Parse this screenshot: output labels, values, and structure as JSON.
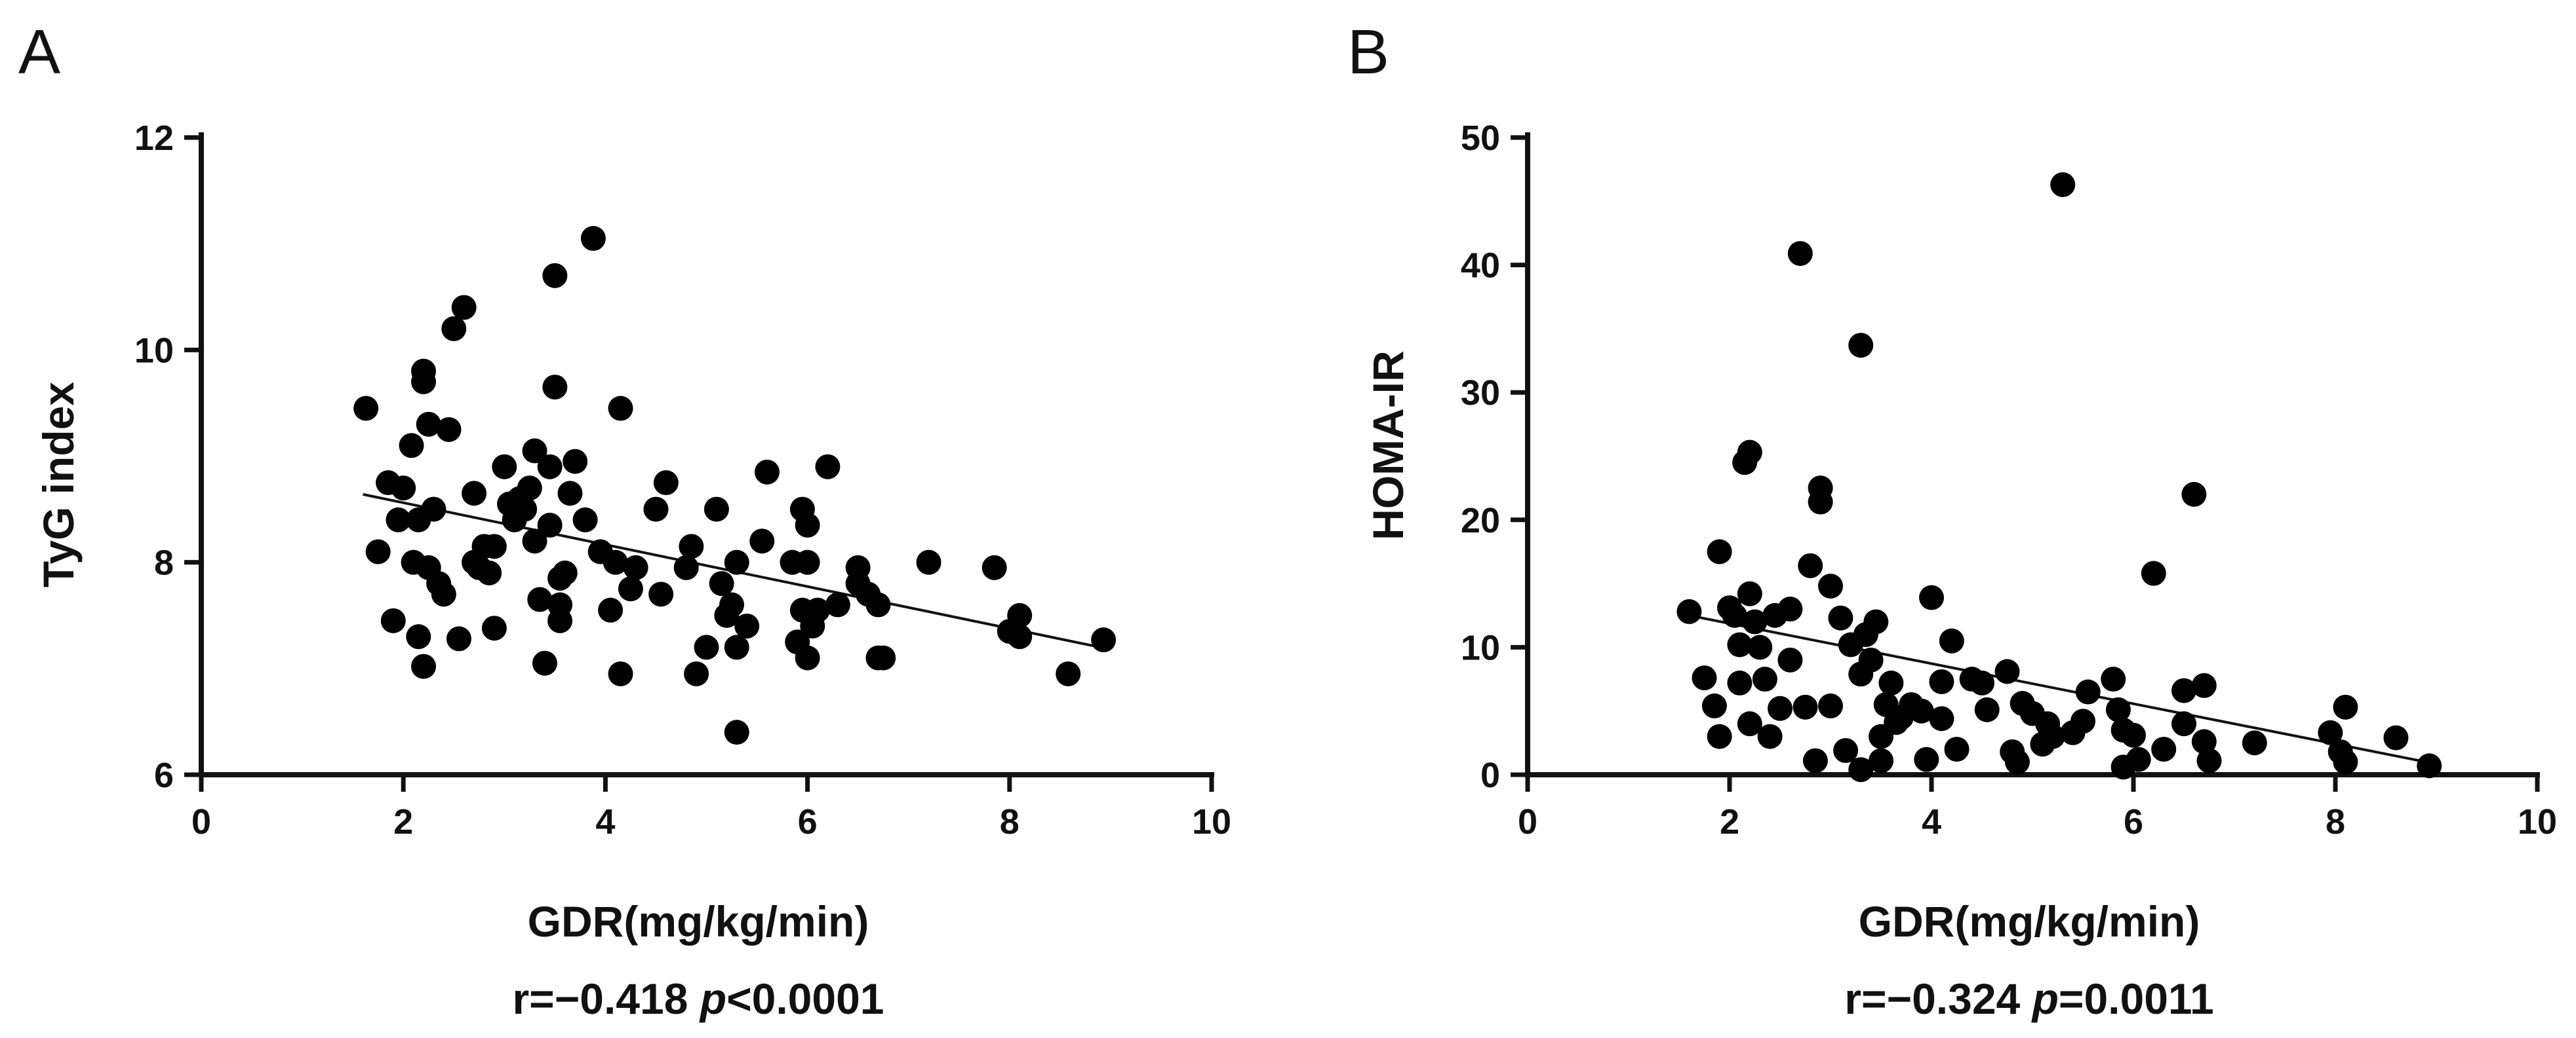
{
  "chart_data": [
    {
      "panel": "A",
      "type": "scatter",
      "xlabel": "GDR(mg/kg/min)",
      "ylabel": "TyG index",
      "xlim": [
        0,
        10
      ],
      "ylim": [
        6,
        12
      ],
      "xticks": [
        0,
        2,
        4,
        6,
        8,
        10
      ],
      "yticks": [
        6,
        8,
        10,
        12
      ],
      "stats": {
        "r_text": "r=−0.418 ",
        "p_symbol": "p",
        "p_value": "<0.0001"
      },
      "fit": {
        "x": [
          1.6,
          8.9
        ],
        "y": [
          8.64,
          7.2
        ]
      },
      "points": [
        [
          1.63,
          9.45
        ],
        [
          1.75,
          8.1
        ],
        [
          1.85,
          8.75
        ],
        [
          1.9,
          7.45
        ],
        [
          1.95,
          8.4
        ],
        [
          2.0,
          8.7
        ],
        [
          2.08,
          9.1
        ],
        [
          2.1,
          8.0
        ],
        [
          2.15,
          7.3
        ],
        [
          2.15,
          8.4
        ],
        [
          2.2,
          9.7
        ],
        [
          2.2,
          9.8
        ],
        [
          2.2,
          7.02
        ],
        [
          2.25,
          9.3
        ],
        [
          2.25,
          7.95
        ],
        [
          2.3,
          8.5
        ],
        [
          2.35,
          7.8
        ],
        [
          2.4,
          7.7
        ],
        [
          2.45,
          9.25
        ],
        [
          2.5,
          10.2
        ],
        [
          2.6,
          10.4
        ],
        [
          2.55,
          7.28
        ],
        [
          2.7,
          8.65
        ],
        [
          2.7,
          8.0
        ],
        [
          2.75,
          7.95
        ],
        [
          2.8,
          8.15
        ],
        [
          2.85,
          7.9
        ],
        [
          2.9,
          8.15
        ],
        [
          2.9,
          7.38
        ],
        [
          3.0,
          8.9
        ],
        [
          3.05,
          8.55
        ],
        [
          3.1,
          8.4
        ],
        [
          3.15,
          8.6
        ],
        [
          3.2,
          8.5
        ],
        [
          3.25,
          8.7
        ],
        [
          3.3,
          9.05
        ],
        [
          3.3,
          8.2
        ],
        [
          3.35,
          7.65
        ],
        [
          3.4,
          7.05
        ],
        [
          3.45,
          8.9
        ],
        [
          3.45,
          8.35
        ],
        [
          3.5,
          9.65
        ],
        [
          3.5,
          10.7
        ],
        [
          3.55,
          7.85
        ],
        [
          3.55,
          7.6
        ],
        [
          3.55,
          7.45
        ],
        [
          3.6,
          7.9
        ],
        [
          3.65,
          8.65
        ],
        [
          3.7,
          8.95
        ],
        [
          3.8,
          8.4
        ],
        [
          3.88,
          11.05
        ],
        [
          3.95,
          8.1
        ],
        [
          4.05,
          7.55
        ],
        [
          4.1,
          8.0
        ],
        [
          4.15,
          9.45
        ],
        [
          4.15,
          6.95
        ],
        [
          4.25,
          7.75
        ],
        [
          4.3,
          7.95
        ],
        [
          4.5,
          8.5
        ],
        [
          4.55,
          7.7
        ],
        [
          4.6,
          8.75
        ],
        [
          4.8,
          7.95
        ],
        [
          4.85,
          8.15
        ],
        [
          4.9,
          6.95
        ],
        [
          5.0,
          7.2
        ],
        [
          5.1,
          8.5
        ],
        [
          5.15,
          7.8
        ],
        [
          5.2,
          7.5
        ],
        [
          5.25,
          7.6
        ],
        [
          5.3,
          8.0
        ],
        [
          5.3,
          7.2
        ],
        [
          5.3,
          6.4
        ],
        [
          5.4,
          7.4
        ],
        [
          5.55,
          8.2
        ],
        [
          5.6,
          8.85
        ],
        [
          5.85,
          8.0
        ],
        [
          5.9,
          7.25
        ],
        [
          5.95,
          8.5
        ],
        [
          5.95,
          7.55
        ],
        [
          6.0,
          8.35
        ],
        [
          6.0,
          8.0
        ],
        [
          6.0,
          7.1
        ],
        [
          6.05,
          7.4
        ],
        [
          6.1,
          7.55
        ],
        [
          6.2,
          8.9
        ],
        [
          6.3,
          7.6
        ],
        [
          6.5,
          7.95
        ],
        [
          6.5,
          7.8
        ],
        [
          6.6,
          7.7
        ],
        [
          6.7,
          7.6
        ],
        [
          6.7,
          7.1
        ],
        [
          6.75,
          7.1
        ],
        [
          7.2,
          8.0
        ],
        [
          7.85,
          7.95
        ],
        [
          8.0,
          7.35
        ],
        [
          8.1,
          7.3
        ],
        [
          8.1,
          7.5
        ],
        [
          8.58,
          6.95
        ],
        [
          8.93,
          7.27
        ]
      ]
    },
    {
      "panel": "B",
      "type": "scatter",
      "xlabel": "GDR(mg/kg/min)",
      "ylabel": "HOMA-IR",
      "xlim": [
        0,
        10
      ],
      "ylim": [
        0,
        50
      ],
      "xticks": [
        0,
        2,
        4,
        6,
        8,
        10
      ],
      "yticks": [
        0,
        10,
        20,
        30,
        40,
        50
      ],
      "stats": {
        "r_text": "r=−0.324 ",
        "p_symbol": "p",
        "p_value": "=0.0011"
      },
      "fit": {
        "x": [
          1.6,
          8.9
        ],
        "y": [
          12.5,
          1.0
        ]
      },
      "points": [
        [
          1.6,
          12.8
        ],
        [
          1.75,
          7.6
        ],
        [
          1.85,
          5.4
        ],
        [
          1.9,
          3.0
        ],
        [
          1.9,
          17.5
        ],
        [
          2.0,
          13.1
        ],
        [
          2.05,
          12.5
        ],
        [
          2.1,
          7.2
        ],
        [
          2.1,
          10.2
        ],
        [
          2.15,
          24.5
        ],
        [
          2.2,
          25.3
        ],
        [
          2.2,
          14.2
        ],
        [
          2.2,
          4.0
        ],
        [
          2.25,
          12.0
        ],
        [
          2.3,
          10.0
        ],
        [
          2.35,
          7.5
        ],
        [
          2.4,
          3.0
        ],
        [
          2.45,
          12.5
        ],
        [
          2.5,
          5.2
        ],
        [
          2.6,
          13.0
        ],
        [
          2.6,
          9.0
        ],
        [
          2.7,
          40.9
        ],
        [
          2.75,
          5.3
        ],
        [
          2.8,
          16.4
        ],
        [
          2.85,
          1.1
        ],
        [
          2.9,
          21.4
        ],
        [
          2.9,
          22.5
        ],
        [
          3.0,
          5.4
        ],
        [
          3.0,
          14.8
        ],
        [
          3.1,
          12.3
        ],
        [
          3.15,
          1.9
        ],
        [
          3.2,
          10.2
        ],
        [
          3.3,
          33.7
        ],
        [
          3.3,
          7.9
        ],
        [
          3.3,
          0.4
        ],
        [
          3.35,
          11.0
        ],
        [
          3.4,
          9.0
        ],
        [
          3.45,
          12.0
        ],
        [
          3.5,
          1.1
        ],
        [
          3.5,
          3.0
        ],
        [
          3.55,
          5.5
        ],
        [
          3.6,
          7.2
        ],
        [
          3.65,
          4.1
        ],
        [
          3.7,
          4.5
        ],
        [
          3.8,
          5.5
        ],
        [
          3.9,
          5.0
        ],
        [
          3.95,
          1.2
        ],
        [
          4.0,
          13.9
        ],
        [
          4.1,
          4.4
        ],
        [
          4.1,
          7.3
        ],
        [
          4.2,
          10.5
        ],
        [
          4.25,
          2.0
        ],
        [
          4.4,
          7.5
        ],
        [
          4.5,
          7.2
        ],
        [
          4.55,
          5.1
        ],
        [
          4.75,
          8.1
        ],
        [
          4.8,
          1.8
        ],
        [
          4.85,
          1.0
        ],
        [
          4.9,
          5.6
        ],
        [
          5.0,
          4.8
        ],
        [
          5.1,
          2.4
        ],
        [
          5.15,
          4.0
        ],
        [
          5.2,
          3.0
        ],
        [
          5.3,
          46.3
        ],
        [
          5.4,
          3.3
        ],
        [
          5.5,
          4.2
        ],
        [
          5.55,
          6.5
        ],
        [
          5.8,
          7.5
        ],
        [
          5.85,
          5.1
        ],
        [
          5.9,
          3.5
        ],
        [
          5.9,
          0.6
        ],
        [
          6.0,
          3.1
        ],
        [
          6.05,
          1.2
        ],
        [
          6.2,
          15.8
        ],
        [
          6.3,
          2.0
        ],
        [
          6.5,
          6.6
        ],
        [
          6.5,
          4.0
        ],
        [
          6.6,
          22.0
        ],
        [
          6.7,
          7.0
        ],
        [
          6.7,
          2.6
        ],
        [
          6.75,
          1.1
        ],
        [
          7.2,
          2.5
        ],
        [
          7.95,
          3.3
        ],
        [
          8.05,
          1.8
        ],
        [
          8.1,
          1.0
        ],
        [
          8.1,
          5.3
        ],
        [
          8.6,
          2.9
        ],
        [
          8.93,
          0.7
        ]
      ]
    }
  ]
}
